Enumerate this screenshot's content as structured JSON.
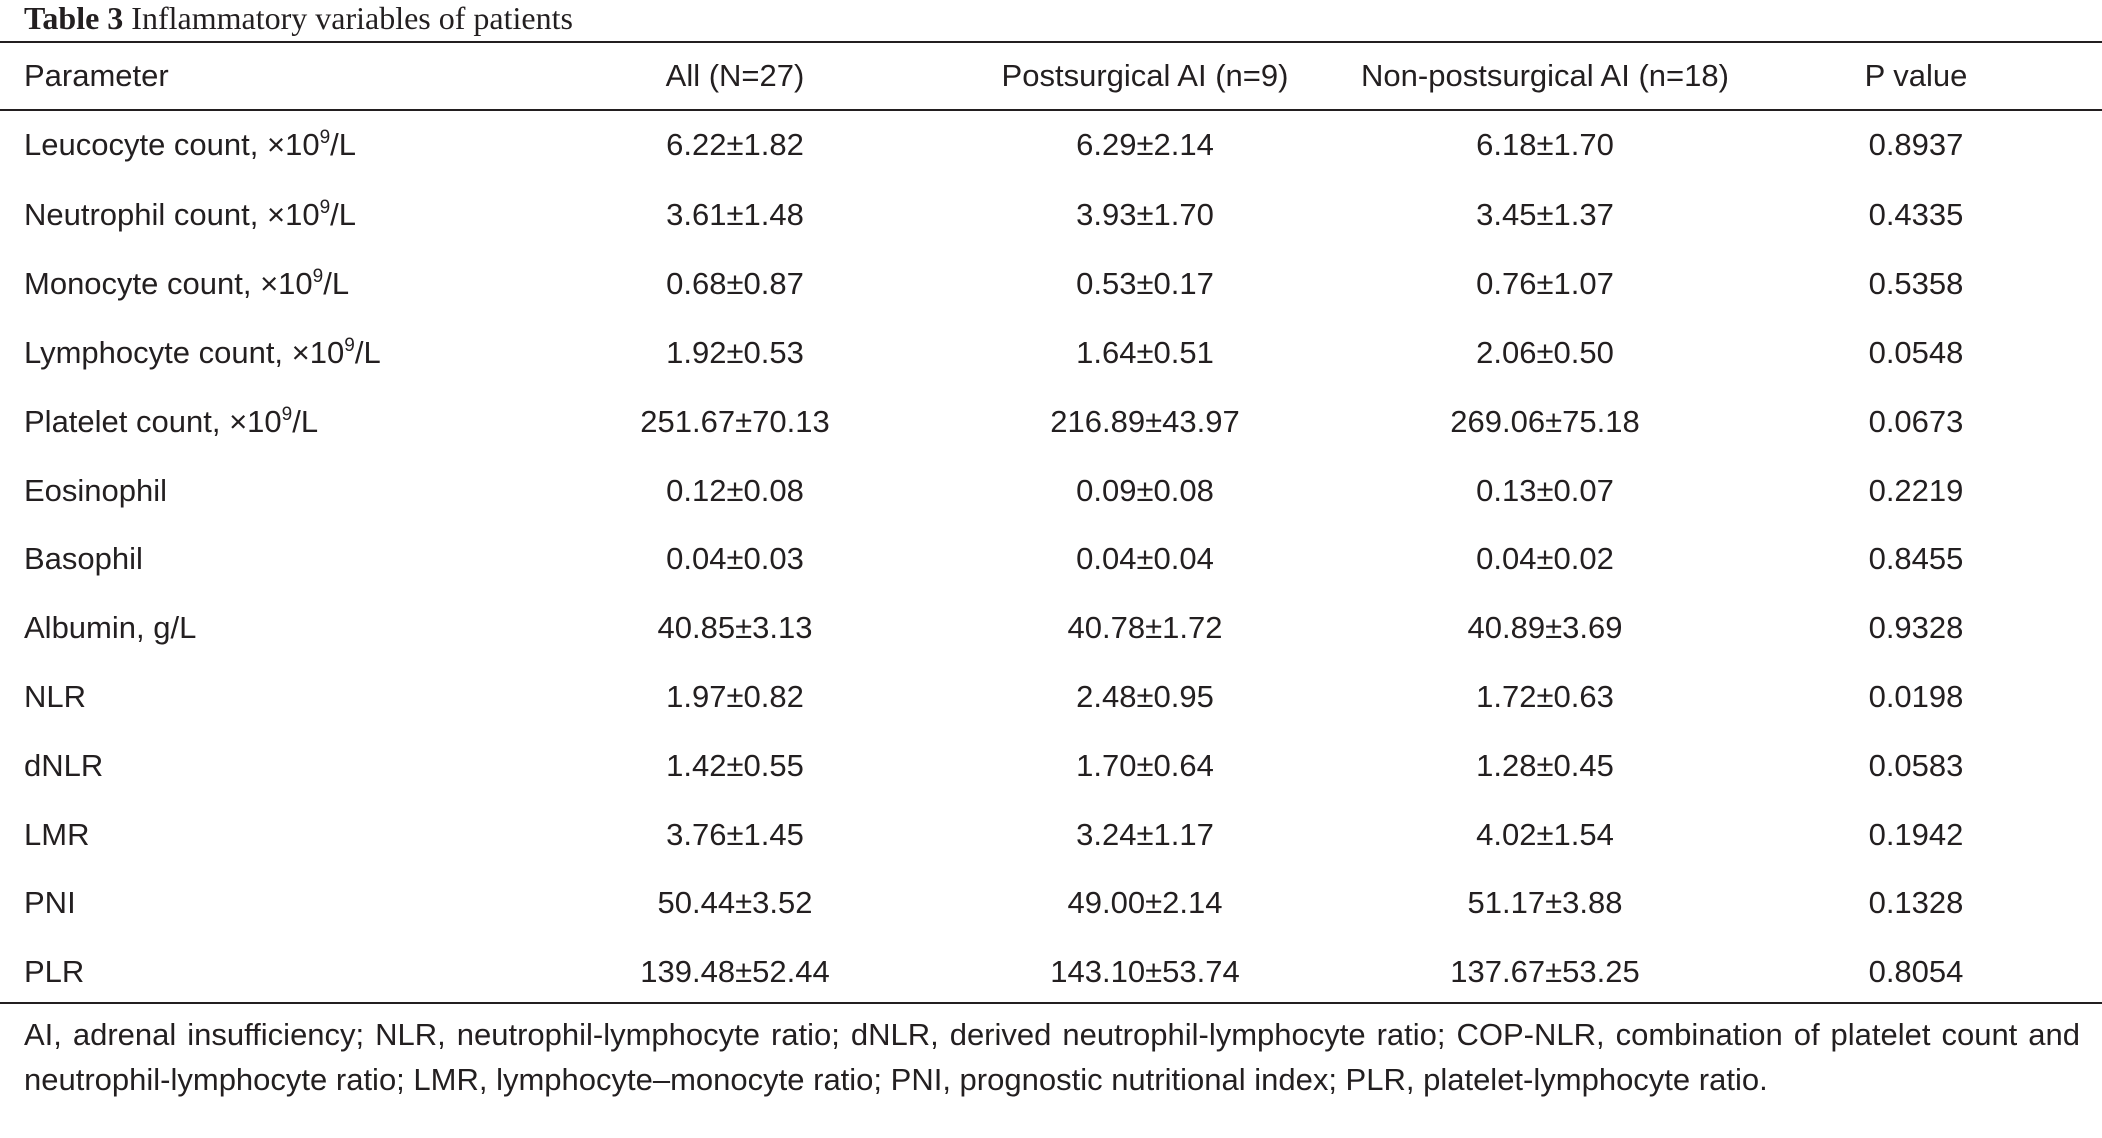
{
  "caption": {
    "number": "Table 3",
    "title": "Inflammatory variables of patients"
  },
  "table": {
    "headers": [
      "Parameter",
      "All (N=27)",
      "Postsurgical AI (n=9)",
      "Non-postsurgical AI (n=18)",
      "P value"
    ],
    "rows": [
      {
        "param": "Leucocyte count, ×10",
        "unit_sup": "9",
        "unit_tail": "/L",
        "values": [
          "6.22±1.82",
          "6.29±2.14",
          "6.18±1.70",
          "0.8937"
        ]
      },
      {
        "param": "Neutrophil count, ×10",
        "unit_sup": "9",
        "unit_tail": "/L",
        "values": [
          "3.61±1.48",
          "3.93±1.70",
          "3.45±1.37",
          "0.4335"
        ]
      },
      {
        "param": "Monocyte count, ×10",
        "unit_sup": "9",
        "unit_tail": "/L",
        "values": [
          "0.68±0.87",
          "0.53±0.17",
          "0.76±1.07",
          "0.5358"
        ]
      },
      {
        "param": "Lymphocyte count, ×10",
        "unit_sup": "9",
        "unit_tail": "/L",
        "values": [
          "1.92±0.53",
          "1.64±0.51",
          "2.06±0.50",
          "0.0548"
        ]
      },
      {
        "param": "Platelet count, ×10",
        "unit_sup": "9",
        "unit_tail": "/L",
        "values": [
          "251.67±70.13",
          "216.89±43.97",
          "269.06±75.18",
          "0.0673"
        ]
      },
      {
        "param": "Eosinophil",
        "unit_sup": "",
        "unit_tail": "",
        "values": [
          "0.12±0.08",
          "0.09±0.08",
          "0.13±0.07",
          "0.2219"
        ]
      },
      {
        "param": "Basophil",
        "unit_sup": "",
        "unit_tail": "",
        "values": [
          "0.04±0.03",
          "0.04±0.04",
          "0.04±0.02",
          "0.8455"
        ]
      },
      {
        "param": "Albumin, g/L",
        "unit_sup": "",
        "unit_tail": "",
        "values": [
          "40.85±3.13",
          "40.78±1.72",
          "40.89±3.69",
          "0.9328"
        ]
      },
      {
        "param": "NLR",
        "unit_sup": "",
        "unit_tail": "",
        "values": [
          "1.97±0.82",
          "2.48±0.95",
          "1.72±0.63",
          "0.0198"
        ]
      },
      {
        "param": "dNLR",
        "unit_sup": "",
        "unit_tail": "",
        "values": [
          "1.42±0.55",
          "1.70±0.64",
          "1.28±0.45",
          "0.0583"
        ]
      },
      {
        "param": "LMR",
        "unit_sup": "",
        "unit_tail": "",
        "values": [
          "3.76±1.45",
          "3.24±1.17",
          "4.02±1.54",
          "0.1942"
        ]
      },
      {
        "param": "PNI",
        "unit_sup": "",
        "unit_tail": "",
        "values": [
          "50.44±3.52",
          "49.00±2.14",
          "51.17±3.88",
          "0.1328"
        ]
      },
      {
        "param": "PLR",
        "unit_sup": "",
        "unit_tail": "",
        "values": [
          "139.48±52.44",
          "143.10±53.74",
          "137.67±53.25",
          "0.8054"
        ]
      }
    ]
  },
  "footnote": "AI, adrenal insufficiency; NLR, neutrophil-lymphocyte ratio; dNLR, derived neutrophil-lymphocyte ratio; COP-NLR, combination of platelet count and neutrophil-lymphocyte ratio; LMR, lymphocyte–monocyte ratio; PNI, prognostic nutritional index; PLR, platelet-lymphocyte ratio."
}
